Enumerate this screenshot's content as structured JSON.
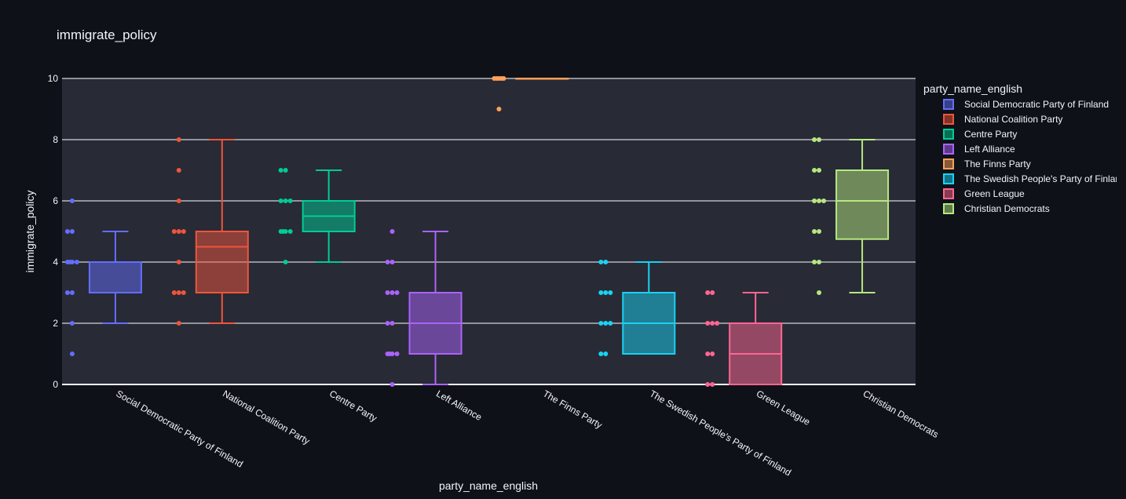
{
  "chart_data": {
    "type": "box",
    "title": "immigrate_policy",
    "xlabel": "party_name_english",
    "ylabel": "immigrate_policy",
    "ylim": [
      0,
      10
    ],
    "yticks": [
      0,
      2,
      4,
      6,
      8,
      10
    ],
    "grid": true,
    "legend_title": "party_name_english",
    "legend_position": "right",
    "categories": [
      "Social Democratic Party of Finland",
      "National Coalition Party",
      "Centre Party",
      "Left Alliance",
      "The Finns Party",
      "The Swedish People's Party of Finland",
      "Green League",
      "Christian Democrats"
    ],
    "series": [
      {
        "name": "Social Democratic Party of Finland",
        "color": "#636efa",
        "stats": {
          "min": 2,
          "q1": 3,
          "median": 4,
          "q3": 4,
          "max": 5
        },
        "points": [
          6,
          5,
          5,
          4,
          4,
          4,
          4,
          3,
          3,
          2,
          1
        ]
      },
      {
        "name": "National Coalition Party",
        "color": "#EF553B",
        "stats": {
          "min": 2,
          "q1": 3,
          "median": 4.5,
          "q3": 5,
          "max": 8
        },
        "points": [
          8,
          7,
          6,
          5,
          5,
          5,
          4,
          3,
          3,
          3,
          2
        ]
      },
      {
        "name": "Centre Party",
        "color": "#00cc96",
        "stats": {
          "min": 4,
          "q1": 5,
          "median": 5.5,
          "q3": 6,
          "max": 7
        },
        "points": [
          7,
          7,
          6,
          6,
          6,
          5,
          5,
          5,
          5,
          4
        ]
      },
      {
        "name": "Left Alliance",
        "color": "#ab63fa",
        "stats": {
          "min": 0,
          "q1": 1,
          "median": 2,
          "q3": 3,
          "max": 5
        },
        "points": [
          5,
          4,
          4,
          3,
          3,
          3,
          2,
          2,
          1,
          1,
          1,
          1,
          0
        ]
      },
      {
        "name": "The Finns Party",
        "color": "#FFA15A",
        "stats": {
          "min": 10,
          "q1": 10,
          "median": 10,
          "q3": 10,
          "max": 10
        },
        "points": [
          10,
          10,
          10,
          10,
          10,
          9
        ]
      },
      {
        "name": "The Swedish People's Party of Finland",
        "color": "#19d3f3",
        "stats": {
          "min": 1,
          "q1": 1,
          "median": 2,
          "q3": 3,
          "max": 4
        },
        "points": [
          4,
          4,
          3,
          3,
          3,
          2,
          2,
          2,
          1,
          1
        ]
      },
      {
        "name": "Green League",
        "color": "#FF6692",
        "stats": {
          "min": 0,
          "q1": 0,
          "median": 1,
          "q3": 2,
          "max": 3
        },
        "points": [
          3,
          3,
          2,
          2,
          2,
          1,
          1,
          0,
          0
        ]
      },
      {
        "name": "Christian Democrats",
        "color": "#B6E880",
        "stats": {
          "min": 3,
          "q1": 4.75,
          "median": 6,
          "q3": 7,
          "max": 8
        },
        "points": [
          8,
          8,
          7,
          7,
          6,
          6,
          6,
          5,
          5,
          4,
          4,
          3
        ]
      }
    ]
  }
}
